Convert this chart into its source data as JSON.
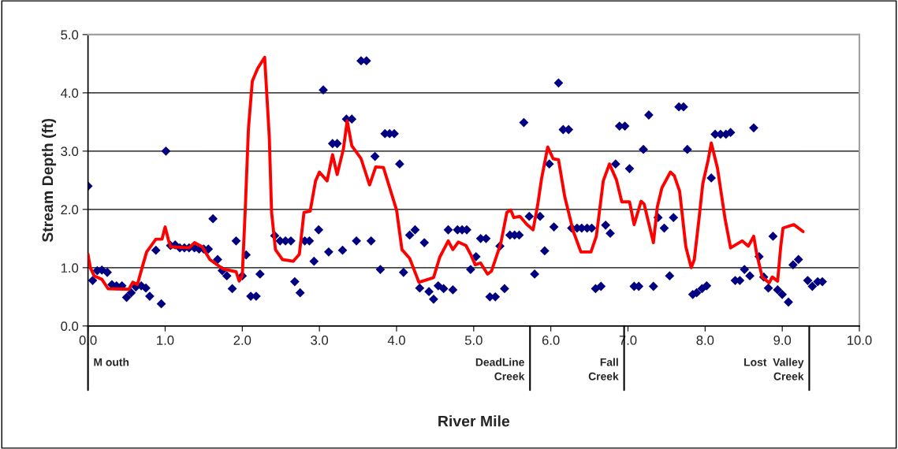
{
  "chart_data": {
    "type": "scatter",
    "xlabel": "River Mile",
    "ylabel": "Stream Depth (ft)",
    "xlim": [
      0,
      10
    ],
    "ylim": [
      0,
      5
    ],
    "xticks": [
      {
        "value": 0,
        "label": "0.0"
      },
      {
        "value": 1,
        "label": "1.0"
      },
      {
        "value": 2,
        "label": "2.0"
      },
      {
        "value": 3,
        "label": "3.0"
      },
      {
        "value": 4,
        "label": "4.0"
      },
      {
        "value": 5,
        "label": "5.0"
      },
      {
        "value": 6,
        "label": "6.0"
      },
      {
        "value": 7,
        "label": "7.0"
      },
      {
        "value": 8,
        "label": "8.0"
      },
      {
        "value": 9,
        "label": "9.0"
      },
      {
        "value": 10,
        "label": "10.0"
      }
    ],
    "yticks": [
      {
        "value": 0,
        "label": "0.0"
      },
      {
        "value": 1,
        "label": "1.0"
      },
      {
        "value": 2,
        "label": "2.0"
      },
      {
        "value": 3,
        "label": "3.0"
      },
      {
        "value": 4,
        "label": "4.0"
      },
      {
        "value": 5,
        "label": "5.0"
      }
    ],
    "grid": "y",
    "legend": false,
    "series": [
      {
        "marker": "diamond",
        "color": "#000080",
        "x": [
          0.0,
          0.06,
          0.12,
          0.18,
          0.25,
          0.31,
          0.37,
          0.44,
          0.5,
          0.56,
          0.62,
          0.69,
          0.75,
          0.8,
          0.88,
          0.95,
          1.01,
          1.07,
          1.13,
          1.19,
          1.25,
          1.31,
          1.38,
          1.44,
          1.5,
          1.56,
          1.62,
          1.68,
          1.74,
          1.8,
          1.87,
          1.92,
          2.0,
          2.05,
          2.11,
          2.18,
          2.23,
          2.42,
          2.49,
          2.56,
          2.63,
          2.68,
          2.75,
          2.81,
          2.87,
          2.93,
          2.99,
          3.05,
          3.12,
          3.17,
          3.23,
          3.3,
          3.35,
          3.42,
          3.48,
          3.54,
          3.61,
          3.67,
          3.72,
          3.79,
          3.85,
          3.91,
          3.97,
          4.04,
          4.09,
          4.17,
          4.24,
          4.3,
          4.36,
          4.42,
          4.48,
          4.54,
          4.61,
          4.67,
          4.73,
          4.79,
          4.85,
          4.91,
          4.96,
          5.03,
          5.09,
          5.16,
          5.21,
          5.28,
          5.34,
          5.4,
          5.47,
          5.53,
          5.59,
          5.65,
          5.72,
          5.79,
          5.86,
          5.92,
          5.98,
          6.04,
          6.1,
          6.16,
          6.23,
          6.27,
          6.34,
          6.4,
          6.47,
          6.53,
          6.58,
          6.65,
          6.71,
          6.77,
          6.84,
          6.89,
          6.96,
          7.02,
          7.08,
          7.14,
          7.2,
          7.27,
          7.33,
          7.39,
          7.47,
          7.54,
          7.59,
          7.66,
          7.72,
          7.77,
          7.84,
          7.89,
          7.96,
          8.02,
          8.08,
          8.13,
          8.2,
          8.27,
          8.33,
          8.39,
          8.45,
          8.51,
          8.58,
          8.63,
          8.7,
          8.76,
          8.82,
          8.88,
          8.94,
          9.0,
          9.08,
          9.14,
          9.21,
          9.33,
          9.39,
          9.46,
          9.52
        ],
        "values": [
          2.4,
          0.78,
          0.95,
          0.96,
          0.92,
          0.71,
          0.69,
          0.69,
          0.49,
          0.57,
          0.67,
          0.69,
          0.65,
          0.51,
          1.3,
          0.38,
          3.0,
          1.38,
          1.39,
          1.34,
          1.34,
          1.34,
          1.34,
          1.32,
          1.32,
          1.32,
          1.84,
          1.14,
          0.95,
          0.86,
          0.64,
          1.46,
          0.86,
          1.22,
          0.51,
          0.51,
          0.89,
          1.55,
          1.46,
          1.46,
          1.46,
          0.76,
          0.57,
          1.46,
          1.46,
          1.11,
          1.65,
          4.05,
          1.27,
          3.13,
          3.13,
          1.3,
          3.55,
          3.55,
          1.46,
          4.55,
          4.55,
          1.46,
          2.91,
          0.97,
          3.3,
          3.3,
          3.3,
          2.78,
          0.92,
          1.56,
          1.65,
          0.65,
          1.43,
          0.59,
          0.46,
          0.69,
          0.64,
          1.65,
          0.62,
          1.65,
          1.65,
          1.65,
          0.97,
          1.19,
          1.5,
          1.5,
          0.5,
          0.5,
          1.37,
          0.64,
          1.56,
          1.56,
          1.56,
          3.49,
          1.88,
          0.89,
          1.88,
          1.29,
          2.78,
          1.7,
          4.17,
          3.37,
          3.37,
          1.68,
          1.68,
          1.68,
          1.68,
          1.68,
          0.64,
          0.68,
          1.73,
          1.59,
          2.78,
          3.43,
          3.43,
          2.7,
          0.68,
          0.68,
          3.03,
          3.62,
          0.68,
          1.86,
          1.68,
          0.86,
          1.86,
          3.76,
          3.76,
          3.03,
          0.54,
          0.57,
          0.64,
          0.69,
          2.54,
          3.29,
          3.29,
          3.29,
          3.32,
          0.78,
          0.78,
          0.97,
          0.86,
          3.4,
          1.19,
          0.84,
          0.65,
          1.54,
          0.62,
          0.54,
          0.41,
          1.05,
          1.14,
          0.78,
          0.68,
          0.76,
          0.76
        ]
      },
      {
        "type": "line",
        "marker": "none",
        "line_style": "solid",
        "color": "#ff0000",
        "x": [
          0.0,
          0.03,
          0.08,
          0.18,
          0.26,
          0.53,
          0.58,
          0.64,
          0.71,
          0.76,
          0.88,
          0.96,
          1.0,
          1.04,
          1.07,
          1.31,
          1.38,
          1.48,
          1.58,
          1.75,
          1.92,
          1.96,
          2.0,
          2.04,
          2.08,
          2.13,
          2.2,
          2.29,
          2.35,
          2.38,
          2.43,
          2.52,
          2.66,
          2.74,
          2.8,
          2.88,
          2.95,
          3.0,
          3.1,
          3.17,
          3.23,
          3.31,
          3.36,
          3.42,
          3.54,
          3.65,
          3.73,
          3.83,
          4.0,
          4.07,
          4.17,
          4.29,
          4.48,
          4.56,
          4.67,
          4.73,
          4.8,
          4.9,
          4.96,
          5.02,
          5.09,
          5.18,
          5.23,
          5.35,
          5.43,
          5.48,
          5.52,
          5.6,
          5.69,
          5.77,
          5.83,
          5.88,
          5.96,
          6.03,
          6.1,
          6.18,
          6.29,
          6.39,
          6.52,
          6.59,
          6.68,
          6.76,
          6.85,
          6.92,
          7.02,
          7.08,
          7.17,
          7.21,
          7.33,
          7.38,
          7.44,
          7.55,
          7.6,
          7.67,
          7.75,
          7.82,
          7.86,
          7.92,
          7.97,
          8.04,
          8.08,
          8.16,
          8.26,
          8.33,
          8.48,
          8.56,
          8.63,
          8.67,
          8.74,
          8.83,
          8.87,
          8.94,
          8.98,
          9.01,
          9.15,
          9.27
        ],
        "values": [
          1.23,
          1.0,
          0.86,
          0.8,
          0.64,
          0.63,
          0.75,
          0.71,
          1.04,
          1.27,
          1.49,
          1.49,
          1.7,
          1.49,
          1.36,
          1.34,
          1.43,
          1.36,
          1.14,
          0.98,
          0.93,
          0.77,
          0.86,
          2.04,
          3.39,
          4.2,
          4.42,
          4.61,
          3.25,
          1.95,
          1.31,
          1.14,
          1.11,
          1.23,
          1.95,
          1.97,
          2.49,
          2.64,
          2.49,
          2.94,
          2.6,
          3.03,
          3.52,
          3.09,
          2.87,
          2.42,
          2.73,
          2.72,
          1.99,
          1.31,
          1.16,
          0.75,
          0.83,
          1.18,
          1.46,
          1.31,
          1.44,
          1.38,
          1.23,
          1.05,
          1.08,
          0.89,
          0.94,
          1.41,
          1.95,
          1.99,
          1.86,
          1.88,
          1.74,
          1.65,
          2.08,
          2.53,
          3.07,
          2.87,
          2.85,
          2.22,
          1.63,
          1.27,
          1.27,
          1.54,
          2.49,
          2.78,
          2.51,
          2.13,
          2.13,
          1.74,
          2.14,
          2.09,
          1.43,
          2.04,
          2.37,
          2.64,
          2.58,
          2.31,
          1.36,
          1.0,
          1.14,
          1.83,
          2.44,
          2.85,
          3.14,
          2.71,
          1.83,
          1.34,
          1.46,
          1.37,
          1.54,
          1.23,
          0.84,
          0.74,
          0.84,
          0.77,
          1.36,
          1.68,
          1.74,
          1.62
        ]
      }
    ],
    "ref_lines": [
      {
        "axis": "x",
        "value": 0.0,
        "label": "M outh"
      },
      {
        "axis": "x",
        "value": 5.73,
        "label": "DeadLine\nCreek"
      },
      {
        "axis": "x",
        "value": 6.95,
        "label": "Fall\nCreek"
      },
      {
        "axis": "x",
        "value": 9.35,
        "label": "Lost  Valley\nCreek"
      }
    ]
  }
}
